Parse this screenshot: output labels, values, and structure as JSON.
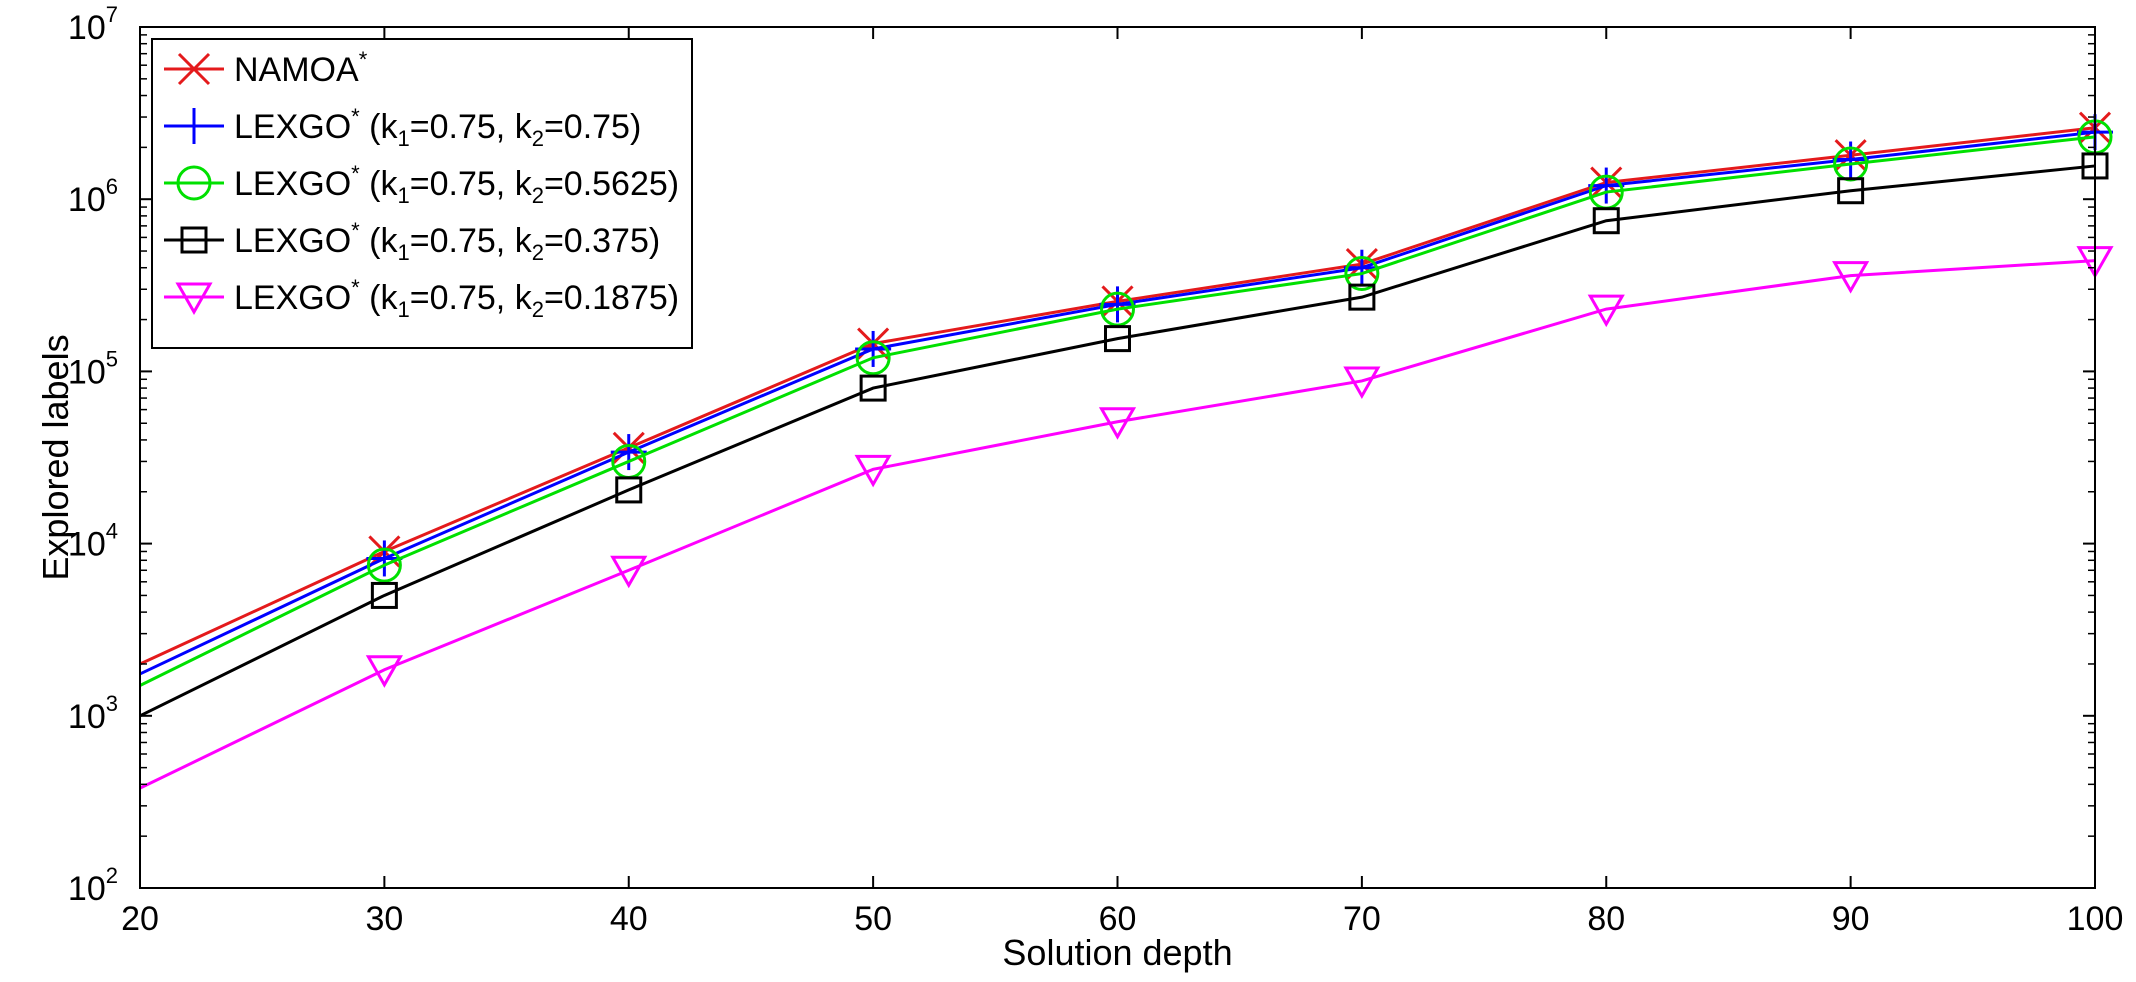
{
  "chart_data": {
    "type": "line",
    "xlabel": "Solution depth",
    "ylabel": "Explored labels",
    "x": [
      20,
      30,
      40,
      50,
      60,
      70,
      80,
      90,
      100
    ],
    "xlim": [
      20,
      100
    ],
    "ylim": [
      100,
      10000000
    ],
    "yscale": "log",
    "xticks": [
      "20",
      "30",
      "40",
      "50",
      "60",
      "70",
      "80",
      "90",
      "100"
    ],
    "yticks": [
      {
        "base": "10",
        "exp": "2"
      },
      {
        "base": "10",
        "exp": "3"
      },
      {
        "base": "10",
        "exp": "4"
      },
      {
        "base": "10",
        "exp": "5"
      },
      {
        "base": "10",
        "exp": "6"
      },
      {
        "base": "10",
        "exp": "7"
      }
    ],
    "grid": false,
    "legend_position": "top-left",
    "series": [
      {
        "name": "NAMOA*",
        "legend": {
          "pre": "NAMOA",
          "sup": "*",
          "post": ""
        },
        "color": "#e41a1c",
        "marker": "x",
        "values": [
          2000,
          9000,
          36000,
          145000,
          255000,
          420000,
          1250000,
          1800000,
          2600000
        ]
      },
      {
        "name": "LEXGO* (k1=0.75, k2=0.75)",
        "legend": {
          "pre": "LEXGO",
          "sup": "*",
          "mid": " (k",
          "s1": "1",
          "m2": "=0.75, k",
          "s2": "2",
          "post": "=0.75)"
        },
        "color": "#0000ff",
        "marker": "plus",
        "values": [
          1750,
          8200,
          34000,
          135000,
          245000,
          400000,
          1200000,
          1700000,
          2450000
        ]
      },
      {
        "name": "LEXGO* (k1=0.75, k2=0.5625)",
        "legend": {
          "pre": "LEXGO",
          "sup": "*",
          "mid": " (k",
          "s1": "1",
          "m2": "=0.75, k",
          "s2": "2",
          "post": "=0.5625)"
        },
        "color": "#00e000",
        "marker": "circle",
        "values": [
          1500,
          7500,
          30000,
          120000,
          230000,
          370000,
          1100000,
          1600000,
          2300000
        ]
      },
      {
        "name": "LEXGO* (k1=0.75, k2=0.375)",
        "legend": {
          "pre": "LEXGO",
          "sup": "*",
          "mid": " (k",
          "s1": "1",
          "m2": "=0.75, k",
          "s2": "2",
          "post": "=0.375)"
        },
        "color": "#000000",
        "marker": "square",
        "values": [
          1000,
          5000,
          20500,
          80000,
          155000,
          270000,
          750000,
          1120000,
          1560000
        ]
      },
      {
        "name": "LEXGO* (k1=0.75, k2=0.1875)",
        "legend": {
          "pre": "LEXGO",
          "sup": "*",
          "mid": " (k",
          "s1": "1",
          "m2": "=0.75, k",
          "s2": "2",
          "post": "=0.1875)"
        },
        "color": "#ff00ff",
        "marker": "triangle-down",
        "values": [
          380,
          1850,
          7000,
          27000,
          51000,
          88000,
          230000,
          360000,
          440000
        ]
      }
    ]
  }
}
